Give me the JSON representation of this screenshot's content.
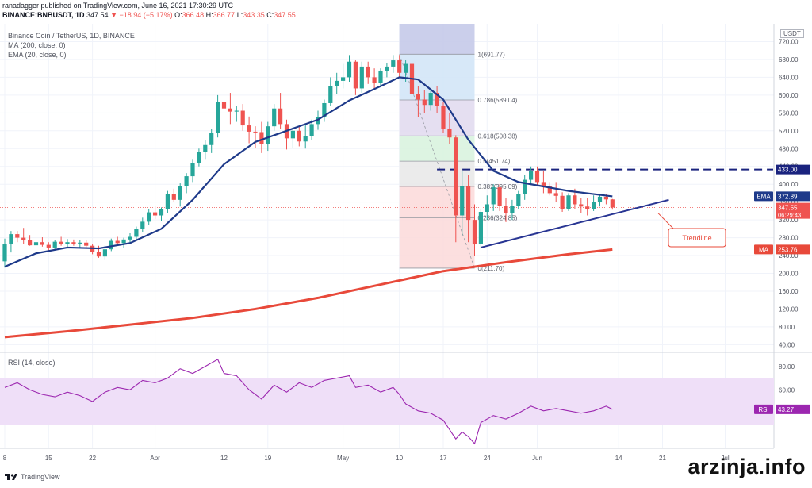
{
  "header": {
    "publisher": "ranadagger published on TradingView.com, June 16, 2021 17:30:29 UTC",
    "symbol": "BINANCE:BNBUSDT, 1D",
    "last": "347.54",
    "change": "−18.94 (−5.17%)",
    "o_label": "O:",
    "o": "366.48",
    "h_label": "H:",
    "h": "366.77",
    "l_label": "L:",
    "l": "343.35",
    "c_label": "C:",
    "c": "347.55"
  },
  "legend": {
    "title": "Binance Coin / TetherUS, 1D, BINANCE",
    "ma": "MA (200, close, 0)",
    "ema": "EMA (20, close, 0)",
    "rsi": "RSI (14, close)"
  },
  "currency_badge": "USDT",
  "footer": {
    "brand": "TradingView",
    "watermark": "arzinja.info"
  },
  "colors": {
    "up": "#26a69a",
    "down": "#ef5350",
    "ema": "#1e3a8a",
    "ma": "#e8493a",
    "rsi_line": "#9c27b0",
    "rsi_band": "#efdff8",
    "trendline": "#283593",
    "resistance": "#1a237e",
    "grid": "#f0f3fa",
    "axis_text": "#50535e"
  },
  "chart_data": {
    "type": "candlestick",
    "y_axis": {
      "range": [
        30,
        760
      ],
      "ticks": [
        "40.00",
        "80.00",
        "120.00",
        "160.00",
        "200.00",
        "240.00",
        "280.00",
        "320.00",
        "360.00",
        "400.00",
        "440.00",
        "480.00",
        "520.00",
        "560.00",
        "600.00",
        "640.00",
        "680.00",
        "720.00",
        "760.00"
      ]
    },
    "x_axis": {
      "ticks": [
        {
          "label": "8",
          "day": 0
        },
        {
          "label": "15",
          "day": 7
        },
        {
          "label": "22",
          "day": 14
        },
        {
          "label": "Apr",
          "day": 24
        },
        {
          "label": "12",
          "day": 35
        },
        {
          "label": "19",
          "day": 42
        },
        {
          "label": "May",
          "day": 54
        },
        {
          "label": "10",
          "day": 63
        },
        {
          "label": "17",
          "day": 70
        },
        {
          "label": "24",
          "day": 77
        },
        {
          "label": "Jun",
          "day": 85
        },
        {
          "label": "14",
          "day": 98
        },
        {
          "label": "21",
          "day": 105
        },
        {
          "label": "Jul",
          "day": 115
        }
      ]
    },
    "candles": [
      [
        0,
        227,
        278,
        213,
        265
      ],
      [
        1,
        265,
        295,
        247,
        288
      ],
      [
        2,
        288,
        295,
        270,
        280
      ],
      [
        3,
        280,
        302,
        265,
        274
      ],
      [
        4,
        274,
        286,
        262,
        263
      ],
      [
        5,
        263,
        272,
        255,
        270
      ],
      [
        6,
        270,
        281,
        260,
        264
      ],
      [
        7,
        264,
        270,
        250,
        258
      ],
      [
        8,
        258,
        275,
        252,
        271
      ],
      [
        9,
        271,
        282,
        262,
        266
      ],
      [
        10,
        266,
        277,
        258,
        270
      ],
      [
        11,
        270,
        276,
        262,
        266
      ],
      [
        12,
        266,
        275,
        258,
        269
      ],
      [
        13,
        269,
        275,
        258,
        262
      ],
      [
        14,
        262,
        265,
        243,
        248
      ],
      [
        15,
        248,
        262,
        235,
        238
      ],
      [
        16,
        238,
        262,
        230,
        254
      ],
      [
        17,
        254,
        278,
        250,
        273
      ],
      [
        18,
        273,
        282,
        262,
        268
      ],
      [
        19,
        268,
        280,
        258,
        276
      ],
      [
        20,
        276,
        290,
        266,
        282
      ],
      [
        21,
        282,
        305,
        275,
        300
      ],
      [
        22,
        300,
        325,
        292,
        316
      ],
      [
        23,
        316,
        345,
        308,
        337
      ],
      [
        24,
        337,
        350,
        322,
        330
      ],
      [
        25,
        330,
        348,
        318,
        345
      ],
      [
        26,
        345,
        385,
        335,
        378
      ],
      [
        27,
        378,
        390,
        360,
        365
      ],
      [
        28,
        365,
        402,
        350,
        395
      ],
      [
        29,
        395,
        425,
        380,
        418
      ],
      [
        30,
        418,
        455,
        405,
        448
      ],
      [
        31,
        448,
        480,
        440,
        472
      ],
      [
        32,
        472,
        500,
        455,
        488
      ],
      [
        33,
        488,
        525,
        470,
        515
      ],
      [
        34,
        515,
        600,
        505,
        585
      ],
      [
        35,
        585,
        645,
        540,
        570
      ],
      [
        36,
        570,
        605,
        535,
        563
      ],
      [
        37,
        563,
        575,
        540,
        565
      ],
      [
        38,
        565,
        580,
        520,
        532
      ],
      [
        39,
        532,
        552,
        492,
        518
      ],
      [
        40,
        518,
        530,
        482,
        517
      ],
      [
        41,
        517,
        540,
        470,
        490
      ],
      [
        42,
        490,
        540,
        475,
        530
      ],
      [
        43,
        530,
        580,
        520,
        570
      ],
      [
        44,
        570,
        605,
        525,
        535
      ],
      [
        45,
        535,
        545,
        478,
        503
      ],
      [
        46,
        503,
        530,
        482,
        520
      ],
      [
        47,
        520,
        530,
        485,
        496
      ],
      [
        48,
        496,
        535,
        480,
        508
      ],
      [
        49,
        508,
        545,
        500,
        535
      ],
      [
        50,
        535,
        565,
        522,
        550
      ],
      [
        51,
        550,
        590,
        540,
        582
      ],
      [
        52,
        582,
        640,
        575,
        620
      ],
      [
        53,
        620,
        650,
        602,
        632
      ],
      [
        54,
        632,
        670,
        615,
        640
      ],
      [
        55,
        640,
        690,
        630,
        675
      ],
      [
        56,
        675,
        678,
        600,
        615
      ],
      [
        57,
        615,
        675,
        605,
        664
      ],
      [
        58,
        664,
        675,
        625,
        640
      ],
      [
        59,
        640,
        660,
        615,
        628
      ],
      [
        60,
        628,
        660,
        618,
        655
      ],
      [
        61,
        655,
        672,
        640,
        664
      ],
      [
        62,
        664,
        690,
        650,
        678
      ],
      [
        63,
        678,
        690,
        640,
        650
      ],
      [
        64,
        650,
        678,
        630,
        670
      ],
      [
        65,
        670,
        685,
        585,
        603
      ],
      [
        66,
        603,
        620,
        550,
        590
      ],
      [
        67,
        590,
        612,
        560,
        578
      ],
      [
        68,
        578,
        610,
        565,
        605
      ],
      [
        69,
        605,
        620,
        560,
        575
      ],
      [
        70,
        575,
        585,
        515,
        525
      ],
      [
        71,
        525,
        560,
        490,
        505
      ],
      [
        72,
        505,
        510,
        270,
        330
      ],
      [
        73,
        330,
        430,
        285,
        395
      ],
      [
        74,
        395,
        420,
        270,
        320
      ],
      [
        75,
        320,
        355,
        240,
        265
      ],
      [
        76,
        265,
        345,
        255,
        338
      ],
      [
        77,
        338,
        375,
        320,
        355
      ],
      [
        78,
        355,
        400,
        340,
        393
      ],
      [
        79,
        393,
        400,
        340,
        352
      ],
      [
        80,
        352,
        370,
        315,
        335
      ],
      [
        81,
        335,
        365,
        320,
        352
      ],
      [
        82,
        352,
        385,
        345,
        378
      ],
      [
        83,
        378,
        420,
        365,
        410
      ],
      [
        84,
        410,
        440,
        400,
        430
      ],
      [
        85,
        430,
        440,
        395,
        405
      ],
      [
        86,
        405,
        430,
        380,
        395
      ],
      [
        87,
        395,
        405,
        375,
        380
      ],
      [
        88,
        380,
        405,
        360,
        374
      ],
      [
        89,
        374,
        382,
        338,
        345
      ],
      [
        90,
        345,
        380,
        340,
        375
      ],
      [
        91,
        375,
        390,
        345,
        355
      ],
      [
        92,
        355,
        370,
        335,
        350
      ],
      [
        93,
        350,
        370,
        330,
        345
      ],
      [
        94,
        345,
        375,
        340,
        360
      ],
      [
        95,
        360,
        378,
        350,
        372
      ],
      [
        96,
        372,
        378,
        355,
        366
      ],
      [
        97,
        366,
        367,
        343,
        348
      ]
    ],
    "ema20": [
      [
        0,
        215
      ],
      [
        5,
        245
      ],
      [
        10,
        258
      ],
      [
        15,
        256
      ],
      [
        20,
        268
      ],
      [
        25,
        300
      ],
      [
        30,
        365
      ],
      [
        35,
        445
      ],
      [
        40,
        495
      ],
      [
        45,
        520
      ],
      [
        50,
        545
      ],
      [
        55,
        588
      ],
      [
        60,
        620
      ],
      [
        63,
        640
      ],
      [
        66,
        635
      ],
      [
        70,
        590
      ],
      [
        74,
        500
      ],
      [
        78,
        430
      ],
      [
        82,
        405
      ],
      [
        86,
        395
      ],
      [
        90,
        385
      ],
      [
        94,
        378
      ],
      [
        97,
        372.89
      ]
    ],
    "ma200": [
      [
        0,
        57
      ],
      [
        10,
        70
      ],
      [
        20,
        85
      ],
      [
        30,
        100
      ],
      [
        40,
        120
      ],
      [
        50,
        145
      ],
      [
        60,
        175
      ],
      [
        70,
        205
      ],
      [
        80,
        225
      ],
      [
        90,
        243
      ],
      [
        97,
        253.76
      ]
    ],
    "fib": {
      "from_day": 63,
      "to_day": 75,
      "levels": [
        {
          "ratio": "1",
          "price": 691.77,
          "label": "1(691.77)",
          "fill": "#d1d4dc"
        },
        {
          "ratio": "0.786",
          "price": 589.04,
          "label": "0.786(589.04)",
          "fill": "#d0e4f7"
        },
        {
          "ratio": "0.618",
          "price": 508.38,
          "label": "0.618(508.38)",
          "fill": "#e1d9ef"
        },
        {
          "ratio": "0.5",
          "price": 451.74,
          "label": "0.5(451.74)",
          "fill": "#d7f2dd"
        },
        {
          "ratio": "0.382",
          "price": 395.09,
          "label": "0.382(395.09)",
          "fill": "#e7e7e7"
        },
        {
          "ratio": "0.236",
          "price": 324.85,
          "label": "0.236(324.85)",
          "fill": "#fcd9d9"
        },
        {
          "ratio": "0",
          "price": 211.7,
          "label": "0(211.70)",
          "fill": "#fcd9d9"
        }
      ],
      "top_band_price": 760
    },
    "resistance": {
      "price": 433.0,
      "from_day": 69,
      "label": "433.00"
    },
    "trendline": {
      "from": [
        76,
        258
      ],
      "to": [
        106,
        365
      ],
      "label": "Trendline"
    },
    "price_labels": [
      {
        "name": "EMA",
        "value": "372.89",
        "price": 372.89,
        "color": "#1e3a8a"
      },
      {
        "name": "",
        "value": "347.55",
        "price": 347.55,
        "color": "#ef5350",
        "sub": "06:29:43"
      },
      {
        "name": "MA",
        "value": "253.76",
        "price": 253.76,
        "color": "#e8493a"
      }
    ],
    "rsi": {
      "range": [
        10,
        90
      ],
      "ticks": [
        "80.00",
        "60.00"
      ],
      "band": [
        30,
        70
      ],
      "last": "43.27",
      "values": [
        [
          0,
          62
        ],
        [
          2,
          66
        ],
        [
          4,
          60
        ],
        [
          6,
          56
        ],
        [
          8,
          54
        ],
        [
          10,
          58
        ],
        [
          12,
          55
        ],
        [
          14,
          50
        ],
        [
          16,
          58
        ],
        [
          18,
          62
        ],
        [
          20,
          60
        ],
        [
          22,
          68
        ],
        [
          24,
          66
        ],
        [
          26,
          70
        ],
        [
          28,
          78
        ],
        [
          30,
          74
        ],
        [
          32,
          80
        ],
        [
          34,
          86
        ],
        [
          35,
          74
        ],
        [
          37,
          72
        ],
        [
          39,
          60
        ],
        [
          41,
          52
        ],
        [
          43,
          64
        ],
        [
          45,
          58
        ],
        [
          47,
          66
        ],
        [
          49,
          62
        ],
        [
          51,
          68
        ],
        [
          53,
          70
        ],
        [
          55,
          72
        ],
        [
          56,
          62
        ],
        [
          58,
          64
        ],
        [
          60,
          58
        ],
        [
          62,
          62
        ],
        [
          63,
          56
        ],
        [
          64,
          48
        ],
        [
          66,
          42
        ],
        [
          68,
          40
        ],
        [
          70,
          34
        ],
        [
          72,
          18
        ],
        [
          73,
          24
        ],
        [
          74,
          20
        ],
        [
          75,
          14
        ],
        [
          76,
          32
        ],
        [
          78,
          38
        ],
        [
          80,
          35
        ],
        [
          82,
          40
        ],
        [
          84,
          46
        ],
        [
          86,
          42
        ],
        [
          88,
          44
        ],
        [
          90,
          42
        ],
        [
          92,
          40
        ],
        [
          94,
          42
        ],
        [
          96,
          46
        ],
        [
          97,
          43.27
        ]
      ]
    }
  }
}
